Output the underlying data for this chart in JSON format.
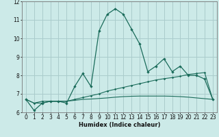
{
  "xlabel": "Humidex (Indice chaleur)",
  "background_color": "#cceae8",
  "grid_color": "#aacccc",
  "line_color": "#1a6b5a",
  "x_values": [
    0,
    1,
    2,
    3,
    4,
    5,
    6,
    7,
    8,
    9,
    10,
    11,
    12,
    13,
    14,
    15,
    16,
    17,
    18,
    19,
    20,
    21,
    22,
    23
  ],
  "series1": [
    6.7,
    6.1,
    6.5,
    6.6,
    6.6,
    6.5,
    7.4,
    8.1,
    7.4,
    10.4,
    11.3,
    11.6,
    11.3,
    10.5,
    9.7,
    8.2,
    8.5,
    8.9,
    8.2,
    8.5,
    8.0,
    8.0,
    7.8,
    6.7
  ],
  "series2": [
    6.7,
    6.5,
    6.6,
    6.6,
    6.6,
    6.6,
    6.7,
    6.8,
    6.9,
    7.0,
    7.15,
    7.25,
    7.35,
    7.45,
    7.55,
    7.65,
    7.75,
    7.82,
    7.88,
    7.95,
    8.05,
    8.1,
    8.15,
    6.7
  ],
  "series3": [
    6.7,
    6.5,
    6.5,
    6.6,
    6.6,
    6.6,
    6.65,
    6.7,
    6.72,
    6.75,
    6.78,
    6.82,
    6.85,
    6.87,
    6.88,
    6.88,
    6.88,
    6.88,
    6.87,
    6.85,
    6.82,
    6.78,
    6.74,
    6.7
  ],
  "ylim": [
    6,
    12
  ],
  "xlim": [
    -0.5,
    23.5
  ],
  "yticks": [
    6,
    7,
    8,
    9,
    10,
    11,
    12
  ],
  "xticks": [
    0,
    1,
    2,
    3,
    4,
    5,
    6,
    7,
    8,
    9,
    10,
    11,
    12,
    13,
    14,
    15,
    16,
    17,
    18,
    19,
    20,
    21,
    22,
    23
  ]
}
